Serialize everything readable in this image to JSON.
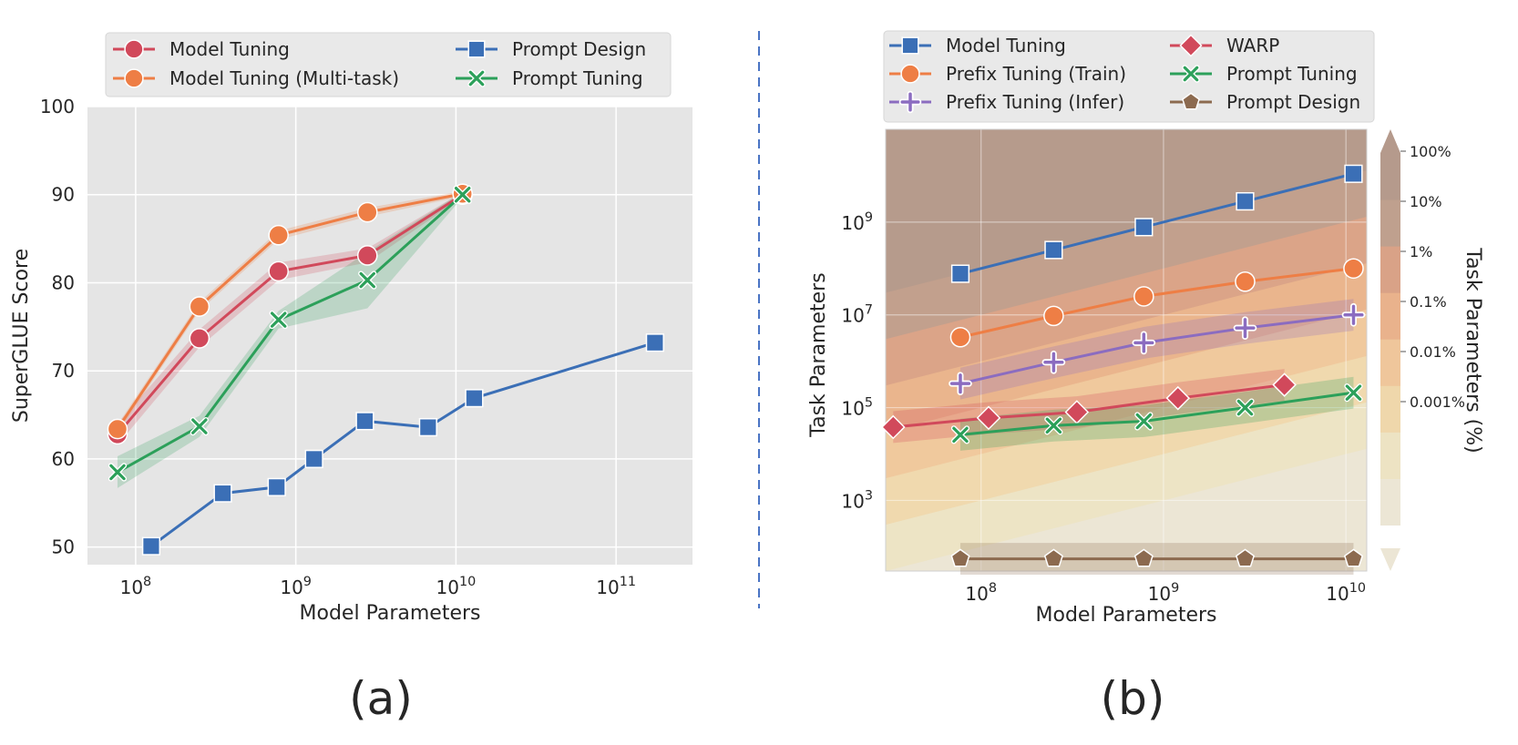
{
  "chart_data": [
    {
      "id": "a",
      "type": "line",
      "panel_label": "(a)",
      "xlabel": "Model Parameters",
      "ylabel": "SuperGLUE Score",
      "xscale": "log",
      "xlim": [
        50000000,
        300000000000
      ],
      "ylim": [
        48,
        100
      ],
      "xticks": [
        {
          "value": 100000000,
          "base": "10",
          "exp": "8"
        },
        {
          "value": 1000000000,
          "base": "10",
          "exp": "9"
        },
        {
          "value": 10000000000,
          "base": "10",
          "exp": "10"
        },
        {
          "value": 100000000000,
          "base": "10",
          "exp": "11"
        }
      ],
      "yticks": [
        50,
        60,
        70,
        80,
        90,
        100
      ],
      "grid": true,
      "legend_position": "top",
      "series": [
        {
          "name": "Model Tuning",
          "color": "#d1495b",
          "marker": "circle",
          "x": [
            77000000,
            250000000,
            780000000,
            2800000000,
            11000000000
          ],
          "y": [
            62.8,
            73.7,
            81.3,
            83.1,
            90.0
          ],
          "band": [
            1.2,
            1.0,
            1.0,
            0.8,
            0.3
          ]
        },
        {
          "name": "Model Tuning (Multi-task)",
          "color": "#ee7e45",
          "marker": "circle",
          "x": [
            77000000,
            250000000,
            780000000,
            2800000000,
            11000000000
          ],
          "y": [
            63.4,
            77.3,
            85.4,
            88.0,
            90.1
          ],
          "band": [
            0.5,
            0.5,
            0.5,
            0.5,
            0.3
          ]
        },
        {
          "name": "Prompt Design",
          "color": "#3b6fb6",
          "marker": "square",
          "x": [
            125000000,
            350000000,
            760000000,
            1300000000,
            2700000000,
            6700000000,
            13000000000,
            175000000000
          ],
          "y": [
            50.1,
            56.1,
            56.8,
            60.0,
            64.3,
            63.6,
            66.9,
            73.2
          ],
          "band": null
        },
        {
          "name": "Prompt Tuning",
          "color": "#2ca05a",
          "marker": "x",
          "x": [
            77000000,
            250000000,
            780000000,
            2800000000,
            11000000000
          ],
          "y": [
            58.5,
            63.7,
            75.8,
            80.3,
            90.0
          ],
          "band": [
            1.8,
            1.2,
            1.0,
            3.2,
            0.3
          ]
        }
      ]
    },
    {
      "id": "b",
      "type": "line",
      "panel_label": "(b)",
      "xlabel": "Model Parameters",
      "ylabel": "Task Parameters",
      "colorbar_label": "Task Parameters (%)",
      "colorbar_ticks": [
        "100%",
        "10%",
        "1%",
        "0.1%",
        "0.01%",
        "0.001%"
      ],
      "xscale": "log",
      "yscale": "log",
      "xlim": [
        30000000,
        13000000000
      ],
      "ylim": [
        30,
        100000000000
      ],
      "xticks": [
        {
          "value": 100000000,
          "base": "10",
          "exp": "8"
        },
        {
          "value": 1000000000,
          "base": "10",
          "exp": "9"
        },
        {
          "value": 10000000000,
          "base": "10",
          "exp": "10"
        }
      ],
      "yticks": [
        {
          "value": 1000,
          "base": "10",
          "exp": "3"
        },
        {
          "value": 100000,
          "base": "10",
          "exp": "5"
        },
        {
          "value": 10000000,
          "base": "10",
          "exp": "7"
        },
        {
          "value": 1000000000,
          "base": "10",
          "exp": "9"
        }
      ],
      "grid": true,
      "legend_position": "top",
      "series": [
        {
          "name": "Model Tuning",
          "color": "#3b6fb6",
          "marker": "square",
          "x": [
            77000000,
            250000000,
            780000000,
            2800000000,
            11000000000
          ],
          "y": [
            77000000,
            250000000,
            780000000,
            2800000000,
            11000000000
          ],
          "band": false
        },
        {
          "name": "Prefix Tuning (Train)",
          "color": "#ee7e45",
          "marker": "circle",
          "x": [
            77000000,
            250000000,
            780000000,
            2800000000,
            11000000000
          ],
          "y": [
            3300000,
            9500000,
            25000000,
            52000000,
            100000000
          ],
          "band": false
        },
        {
          "name": "Prefix Tuning (Infer)",
          "color": "#8b6cc0",
          "marker": "plus",
          "x": [
            77000000,
            250000000,
            780000000,
            2800000000,
            11000000000
          ],
          "y": [
            330000,
            950000,
            2500000,
            5200000,
            10000000
          ],
          "band": true
        },
        {
          "name": "WARP",
          "color": "#d1495b",
          "marker": "diamond",
          "x": [
            33000000,
            110000000,
            335000000,
            1200000000,
            4600000000
          ],
          "y": [
            38000,
            60000,
            80000,
            160000,
            310000
          ],
          "band": true
        },
        {
          "name": "Prompt Tuning",
          "color": "#2ca05a",
          "marker": "x",
          "x": [
            77000000,
            250000000,
            780000000,
            2800000000,
            11000000000
          ],
          "y": [
            26000,
            41000,
            51000,
            100000,
            210000
          ],
          "band": true
        },
        {
          "name": "Prompt Design",
          "color": "#8c6a4f",
          "marker": "pentagon",
          "x": [
            77000000,
            250000000,
            780000000,
            2800000000,
            11000000000
          ],
          "y": [
            55,
            55,
            55,
            55,
            55
          ],
          "band": true
        }
      ]
    }
  ]
}
